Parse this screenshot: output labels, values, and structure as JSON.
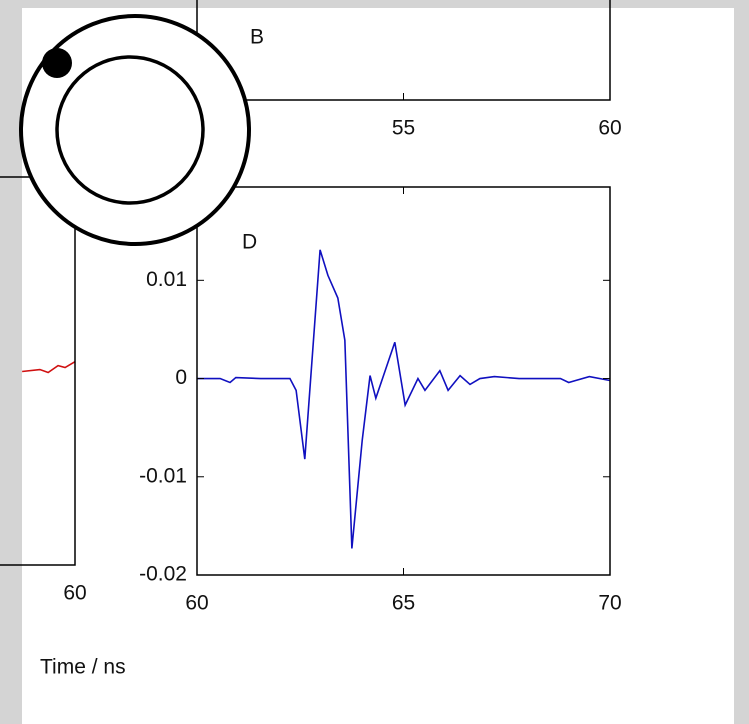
{
  "chart_data": [
    {
      "type": "line",
      "x_label": "Time / ns",
      "xlim": [
        50,
        60
      ],
      "xticks": [
        60
      ],
      "ylim": [
        -0.02,
        0.0195
      ],
      "series": [
        {
          "color": "#d01010",
          "x": [
            58.72,
            59.15,
            59.35,
            59.59,
            59.76,
            60
          ],
          "values": [
            -0.0003,
            -0.0001,
            -0.0004,
            0.0003,
            0.0001,
            0.0007
          ]
        }
      ]
    },
    {
      "type": "line",
      "title": "B",
      "xlim": [
        50,
        60
      ],
      "xticks": [
        55,
        60
      ],
      "series": []
    },
    {
      "type": "line",
      "title": "D",
      "xlim": [
        60,
        70
      ],
      "xticks": [
        60,
        65,
        70
      ],
      "ylim": [
        -0.02,
        0.0195
      ],
      "yticks": [
        0.01,
        0,
        -0.01,
        -0.02
      ],
      "series": [
        {
          "color": "#1010c0",
          "x": [
            60,
            60.56,
            60.8,
            60.94,
            61.54,
            62.25,
            62.4,
            62.61,
            62.98,
            63.17,
            63.41,
            63.58,
            63.75,
            64.0,
            64.19,
            64.33,
            64.79,
            65.04,
            65.35,
            65.52,
            65.88,
            66.08,
            66.37,
            66.61,
            66.85,
            67.2,
            67.8,
            68.8,
            69.0,
            69.5,
            70
          ],
          "values": [
            0,
            0,
            -0.0004,
            0.0001,
            0,
            0,
            -0.0012,
            -0.0082,
            0.0131,
            0.0105,
            0.0082,
            0.0039,
            -0.0173,
            -0.0063,
            0.0003,
            -0.002,
            0.0037,
            -0.0027,
            0,
            -0.0012,
            0.0008,
            -0.0012,
            0.0003,
            -0.0006,
            0,
            0.0002,
            0,
            0,
            -0.0004,
            0.0002,
            -0.0002
          ]
        }
      ]
    }
  ]
}
